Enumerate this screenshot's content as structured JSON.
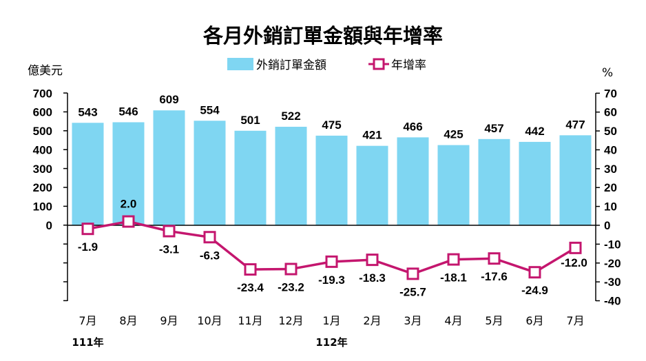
{
  "chart_data": {
    "type": "bar",
    "title": "各月外銷訂單金額與年增率",
    "ylabel_left": "億美元",
    "ylabel_right": "%",
    "categories": [
      "7月",
      "8月",
      "9月",
      "10月",
      "11月",
      "12月",
      "1月",
      "2月",
      "3月",
      "4月",
      "5月",
      "6月",
      "7月"
    ],
    "year_labels": [
      {
        "label": "111年",
        "category_index": 0
      },
      {
        "label": "112年",
        "category_index": 6
      }
    ],
    "series": [
      {
        "name": "外銷訂單金額",
        "type": "bar",
        "axis": "left",
        "color": "#7fd6f2",
        "values": [
          543,
          546,
          609,
          554,
          501,
          522,
          475,
          421,
          466,
          425,
          457,
          442,
          477
        ]
      },
      {
        "name": "年增率",
        "type": "line",
        "axis": "right",
        "color": "#c4166e",
        "values": [
          -1.9,
          2.0,
          -3.1,
          -6.3,
          -23.4,
          -23.2,
          -19.3,
          -18.3,
          -25.7,
          -18.1,
          -17.6,
          -24.9,
          -12.0
        ]
      }
    ],
    "left_axis": {
      "ticks": [
        0,
        100,
        200,
        300,
        400,
        500,
        600,
        700
      ],
      "min": -400,
      "max": 700
    },
    "right_axis": {
      "ticks": [
        -40,
        -30,
        -20,
        -10,
        0,
        10,
        20,
        30,
        40,
        50,
        60,
        70
      ],
      "min": -40,
      "max": 70
    },
    "legend_placement": "top-center",
    "grid": false
  }
}
